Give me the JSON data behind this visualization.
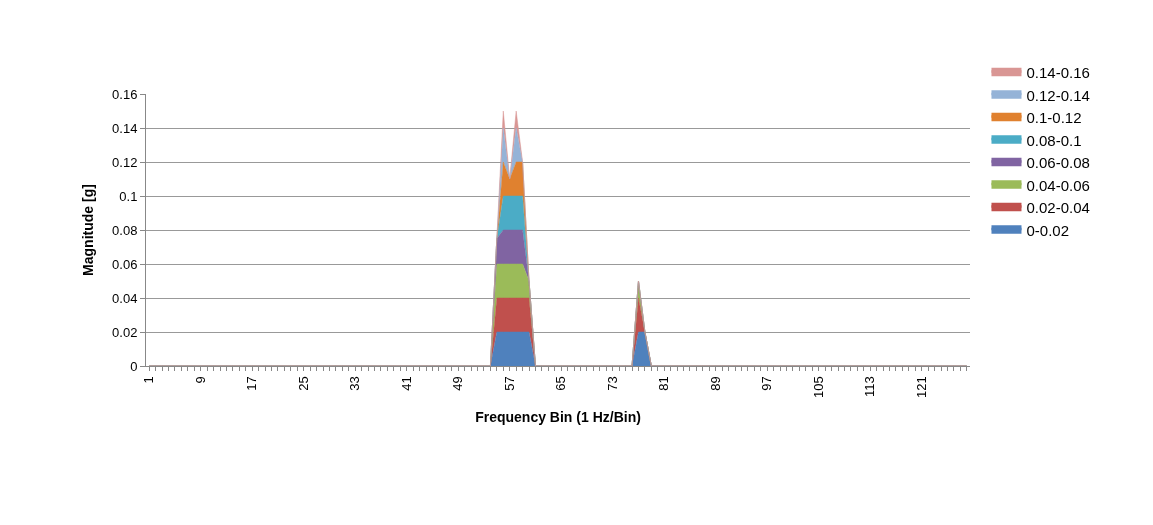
{
  "chart_data": {
    "type": "area",
    "stacked": true,
    "xlabel": "Frequency Bin (1 Hz/Bin)",
    "ylabel": "Magnitude [g]",
    "categories": [
      "1",
      null,
      null,
      null,
      null,
      null,
      null,
      null,
      "9",
      null,
      null,
      null,
      null,
      null,
      null,
      null,
      "17",
      null,
      null,
      null,
      null,
      null,
      null,
      null,
      "25",
      null,
      null,
      null,
      null,
      null,
      null,
      null,
      "33",
      null,
      null,
      null,
      null,
      null,
      null,
      null,
      "41",
      null,
      null,
      null,
      null,
      null,
      null,
      null,
      "49",
      null,
      null,
      null,
      null,
      null,
      null,
      null,
      "57",
      null,
      null,
      null,
      null,
      null,
      null,
      null,
      "65",
      null,
      null,
      null,
      null,
      null,
      null,
      null,
      "73",
      null,
      null,
      null,
      null,
      null,
      null,
      null,
      "81",
      null,
      null,
      null,
      null,
      null,
      null,
      null,
      "89",
      null,
      null,
      null,
      null,
      null,
      null,
      null,
      "97",
      null,
      null,
      null,
      null,
      null,
      null,
      null,
      "105",
      null,
      null,
      null,
      null,
      null,
      null,
      null,
      "113",
      null,
      null,
      null,
      null,
      null,
      null,
      null,
      "121",
      null,
      null,
      null,
      null,
      null,
      null,
      null
    ],
    "series": [
      {
        "name": "0-0.02",
        "color": "#4f81bd",
        "values": [
          0,
          0,
          0,
          0,
          0,
          0,
          0,
          0,
          0,
          0,
          0,
          0,
          0,
          0,
          0,
          0,
          0,
          0,
          0,
          0,
          0,
          0,
          0,
          0,
          0,
          0,
          0,
          0,
          0,
          0,
          0,
          0,
          0,
          0,
          0,
          0,
          0,
          0,
          0,
          0,
          0,
          0,
          0,
          0,
          0,
          0,
          0,
          0,
          0,
          0,
          0,
          0,
          0,
          0,
          0.02,
          0.02,
          0.02,
          0.02,
          0.02,
          0.02,
          0,
          0,
          0,
          0,
          0,
          0,
          0,
          0,
          0,
          0,
          0,
          0,
          0,
          0,
          0,
          0,
          0.02,
          0.02,
          0,
          0,
          0,
          0,
          0,
          0,
          0,
          0,
          0,
          0,
          0,
          0,
          0,
          0,
          0,
          0,
          0,
          0,
          0,
          0,
          0,
          0,
          0,
          0,
          0,
          0,
          0,
          0,
          0,
          0,
          0,
          0,
          0,
          0,
          0,
          0,
          0,
          0,
          0,
          0,
          0,
          0,
          0,
          0,
          0,
          0,
          0,
          0,
          0,
          0
        ]
      },
      {
        "name": "0.02-0.04",
        "color": "#c0504d",
        "values": [
          0,
          0,
          0,
          0,
          0,
          0,
          0,
          0,
          0,
          0,
          0,
          0,
          0,
          0,
          0,
          0,
          0,
          0,
          0,
          0,
          0,
          0,
          0,
          0,
          0,
          0,
          0,
          0,
          0,
          0,
          0,
          0,
          0,
          0,
          0,
          0,
          0,
          0,
          0,
          0,
          0,
          0,
          0,
          0,
          0,
          0,
          0,
          0,
          0,
          0,
          0,
          0,
          0,
          0,
          0.02,
          0.02,
          0.02,
          0.02,
          0.02,
          0.02,
          0,
          0,
          0,
          0,
          0,
          0,
          0,
          0,
          0,
          0,
          0,
          0,
          0,
          0,
          0,
          0,
          0.02,
          0,
          0,
          0,
          0,
          0,
          0,
          0,
          0,
          0,
          0,
          0,
          0,
          0,
          0,
          0,
          0,
          0,
          0,
          0,
          0,
          0,
          0,
          0,
          0,
          0,
          0,
          0,
          0,
          0,
          0,
          0,
          0,
          0,
          0,
          0,
          0,
          0,
          0,
          0,
          0,
          0,
          0,
          0,
          0,
          0,
          0,
          0,
          0,
          0,
          0,
          0
        ]
      },
      {
        "name": "0.04-0.06",
        "color": "#9bbb59",
        "values": [
          0,
          0,
          0,
          0,
          0,
          0,
          0,
          0,
          0,
          0,
          0,
          0,
          0,
          0,
          0,
          0,
          0,
          0,
          0,
          0,
          0,
          0,
          0,
          0,
          0,
          0,
          0,
          0,
          0,
          0,
          0,
          0,
          0,
          0,
          0,
          0,
          0,
          0,
          0,
          0,
          0,
          0,
          0,
          0,
          0,
          0,
          0,
          0,
          0,
          0,
          0,
          0,
          0,
          0,
          0.02,
          0.02,
          0.02,
          0.02,
          0.02,
          0.01,
          0,
          0,
          0,
          0,
          0,
          0,
          0,
          0,
          0,
          0,
          0,
          0,
          0,
          0,
          0,
          0,
          0.01,
          0,
          0,
          0,
          0,
          0,
          0,
          0,
          0,
          0,
          0,
          0,
          0,
          0,
          0,
          0,
          0,
          0,
          0,
          0,
          0,
          0,
          0,
          0,
          0,
          0,
          0,
          0,
          0,
          0,
          0,
          0,
          0,
          0,
          0,
          0,
          0,
          0,
          0,
          0,
          0,
          0,
          0,
          0,
          0,
          0,
          0,
          0,
          0,
          0,
          0,
          0
        ]
      },
      {
        "name": "0.06-0.08",
        "color": "#8064a2",
        "values": [
          0,
          0,
          0,
          0,
          0,
          0,
          0,
          0,
          0,
          0,
          0,
          0,
          0,
          0,
          0,
          0,
          0,
          0,
          0,
          0,
          0,
          0,
          0,
          0,
          0,
          0,
          0,
          0,
          0,
          0,
          0,
          0,
          0,
          0,
          0,
          0,
          0,
          0,
          0,
          0,
          0,
          0,
          0,
          0,
          0,
          0,
          0,
          0,
          0,
          0,
          0,
          0,
          0,
          0,
          0.015,
          0.02,
          0.02,
          0.02,
          0.02,
          0,
          0,
          0,
          0,
          0,
          0,
          0,
          0,
          0,
          0,
          0,
          0,
          0,
          0,
          0,
          0,
          0,
          0,
          0,
          0,
          0,
          0,
          0,
          0,
          0,
          0,
          0,
          0,
          0,
          0,
          0,
          0,
          0,
          0,
          0,
          0,
          0,
          0,
          0,
          0,
          0,
          0,
          0,
          0,
          0,
          0,
          0,
          0,
          0,
          0,
          0,
          0,
          0,
          0,
          0,
          0,
          0,
          0,
          0,
          0,
          0,
          0,
          0,
          0,
          0,
          0,
          0,
          0,
          0
        ]
      },
      {
        "name": "0.08-0.1",
        "color": "#4bacc6",
        "values": [
          0,
          0,
          0,
          0,
          0,
          0,
          0,
          0,
          0,
          0,
          0,
          0,
          0,
          0,
          0,
          0,
          0,
          0,
          0,
          0,
          0,
          0,
          0,
          0,
          0,
          0,
          0,
          0,
          0,
          0,
          0,
          0,
          0,
          0,
          0,
          0,
          0,
          0,
          0,
          0,
          0,
          0,
          0,
          0,
          0,
          0,
          0,
          0,
          0,
          0,
          0,
          0,
          0,
          0,
          0,
          0.02,
          0.02,
          0.02,
          0.02,
          0,
          0,
          0,
          0,
          0,
          0,
          0,
          0,
          0,
          0,
          0,
          0,
          0,
          0,
          0,
          0,
          0,
          0,
          0,
          0,
          0,
          0,
          0,
          0,
          0,
          0,
          0,
          0,
          0,
          0,
          0,
          0,
          0,
          0,
          0,
          0,
          0,
          0,
          0,
          0,
          0,
          0,
          0,
          0,
          0,
          0,
          0,
          0,
          0,
          0,
          0,
          0,
          0,
          0,
          0,
          0,
          0,
          0,
          0,
          0,
          0,
          0,
          0,
          0,
          0,
          0,
          0,
          0,
          0
        ]
      },
      {
        "name": "0.1-0.12",
        "color": "#e0812f",
        "values": [
          0,
          0,
          0,
          0,
          0,
          0,
          0,
          0,
          0,
          0,
          0,
          0,
          0,
          0,
          0,
          0,
          0,
          0,
          0,
          0,
          0,
          0,
          0,
          0,
          0,
          0,
          0,
          0,
          0,
          0,
          0,
          0,
          0,
          0,
          0,
          0,
          0,
          0,
          0,
          0,
          0,
          0,
          0,
          0,
          0,
          0,
          0,
          0,
          0,
          0,
          0,
          0,
          0,
          0,
          0,
          0.02,
          0.01,
          0.02,
          0.02,
          0,
          0,
          0,
          0,
          0,
          0,
          0,
          0,
          0,
          0,
          0,
          0,
          0,
          0,
          0,
          0,
          0,
          0,
          0,
          0,
          0,
          0,
          0,
          0,
          0,
          0,
          0,
          0,
          0,
          0,
          0,
          0,
          0,
          0,
          0,
          0,
          0,
          0,
          0,
          0,
          0,
          0,
          0,
          0,
          0,
          0,
          0,
          0,
          0,
          0,
          0,
          0,
          0,
          0,
          0,
          0,
          0,
          0,
          0,
          0,
          0,
          0,
          0,
          0,
          0,
          0,
          0,
          0,
          0
        ]
      },
      {
        "name": "0.12-0.14",
        "color": "#95b3d7",
        "values": [
          0,
          0,
          0,
          0,
          0,
          0,
          0,
          0,
          0,
          0,
          0,
          0,
          0,
          0,
          0,
          0,
          0,
          0,
          0,
          0,
          0,
          0,
          0,
          0,
          0,
          0,
          0,
          0,
          0,
          0,
          0,
          0,
          0,
          0,
          0,
          0,
          0,
          0,
          0,
          0,
          0,
          0,
          0,
          0,
          0,
          0,
          0,
          0,
          0,
          0,
          0,
          0,
          0,
          0,
          0,
          0.02,
          0,
          0.02,
          0,
          0,
          0,
          0,
          0,
          0,
          0,
          0,
          0,
          0,
          0,
          0,
          0,
          0,
          0,
          0,
          0,
          0,
          0,
          0,
          0,
          0,
          0,
          0,
          0,
          0,
          0,
          0,
          0,
          0,
          0,
          0,
          0,
          0,
          0,
          0,
          0,
          0,
          0,
          0,
          0,
          0,
          0,
          0,
          0,
          0,
          0,
          0,
          0,
          0,
          0,
          0,
          0,
          0,
          0,
          0,
          0,
          0,
          0,
          0,
          0,
          0,
          0,
          0,
          0,
          0,
          0,
          0,
          0,
          0
        ]
      },
      {
        "name": "0.14-0.16",
        "color": "#d99694",
        "values": [
          0,
          0,
          0,
          0,
          0,
          0,
          0,
          0,
          0,
          0,
          0,
          0,
          0,
          0,
          0,
          0,
          0,
          0,
          0,
          0,
          0,
          0,
          0,
          0,
          0,
          0,
          0,
          0,
          0,
          0,
          0,
          0,
          0,
          0,
          0,
          0,
          0,
          0,
          0,
          0,
          0,
          0,
          0,
          0,
          0,
          0,
          0,
          0,
          0,
          0,
          0,
          0,
          0,
          0,
          0,
          0.01,
          0,
          0.01,
          0,
          0,
          0,
          0,
          0,
          0,
          0,
          0,
          0,
          0,
          0,
          0,
          0,
          0,
          0,
          0,
          0,
          0,
          0,
          0,
          0,
          0,
          0,
          0,
          0,
          0,
          0,
          0,
          0,
          0,
          0,
          0,
          0,
          0,
          0,
          0,
          0,
          0,
          0,
          0,
          0,
          0,
          0,
          0,
          0,
          0,
          0,
          0,
          0,
          0,
          0,
          0,
          0,
          0,
          0,
          0,
          0,
          0,
          0,
          0,
          0,
          0,
          0,
          0,
          0,
          0,
          0,
          0,
          0,
          0
        ]
      }
    ],
    "ylim": [
      0,
      0.16
    ],
    "yticks": [
      0,
      0.02,
      0.04,
      0.06,
      0.08,
      0.1,
      0.12,
      0.14,
      0.16
    ],
    "grid": "y",
    "legend": "right"
  }
}
